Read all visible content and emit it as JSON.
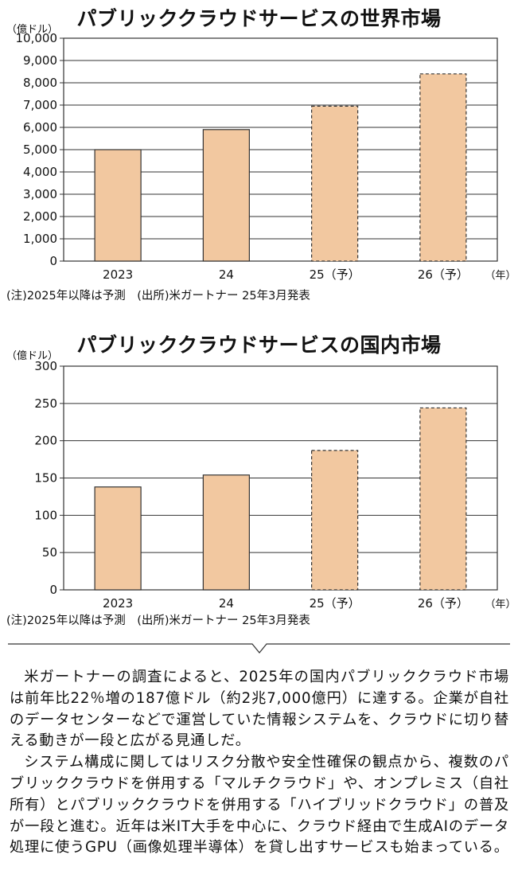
{
  "chart_data": [
    {
      "type": "bar",
      "title": "パブリッククラウドサービスの世界市場",
      "unit_label": "（億ドル）",
      "categories": [
        "2023",
        "24",
        "25（予）",
        "26（予）"
      ],
      "values": [
        5000,
        5900,
        6950,
        8400
      ],
      "forecast": [
        false,
        false,
        true,
        true
      ],
      "x_unit": "（年）",
      "ylim": [
        0,
        10000
      ],
      "yticks": [
        "0",
        "1,000",
        "2,000",
        "3,000",
        "4,000",
        "5,000",
        "6,000",
        "7,000",
        "8,000",
        "9,000",
        "10,000"
      ],
      "ytick_values": [
        0,
        1000,
        2000,
        3000,
        4000,
        5000,
        6000,
        7000,
        8000,
        9000,
        10000
      ],
      "grid": true,
      "note": "(注)2025年以降は予測　(出所)米ガートナー 25年3月発表"
    },
    {
      "type": "bar",
      "title": "パブリッククラウドサービスの国内市場",
      "unit_label": "（億ドル）",
      "categories": [
        "2023",
        "24",
        "25（予）",
        "26（予）"
      ],
      "values": [
        138,
        154,
        187,
        244
      ],
      "forecast": [
        false,
        false,
        true,
        true
      ],
      "x_unit": "（年）",
      "ylim": [
        0,
        300
      ],
      "yticks": [
        "0",
        "50",
        "100",
        "150",
        "200",
        "250",
        "300"
      ],
      "ytick_values": [
        0,
        50,
        100,
        150,
        200,
        250,
        300
      ],
      "grid": true,
      "note": "(注)2025年以降は予測　(出所)米ガートナー 25年3月発表"
    }
  ],
  "colors": {
    "bar": "#f2c8a0",
    "bar_stroke": "#333333",
    "grid": "#333333"
  },
  "article": {
    "p1": "米ガートナーの調査によると、2025年の国内パブリッククラウド市場は前年比22％増の187億ドル（約2兆7,000億円）に達する。企業が自社のデータセンターなどで運営していた情報システムを、クラウドに切り替える動きが一段と広がる見通しだ。",
    "p2": "システム構成に関してはリスク分散や安全性確保の観点から、複数のパブリッククラウドを併用する「マルチクラウド」や、オンプレミス（自社所有）とパブリッククラウドを併用する「ハイブリッドクラウド」の普及が一段と進む。近年は米IT大手を中心に、クラウド経由で生成AIのデータ処理に使うGPU（画像処理半導体）を貸し出すサービスも始まっている。"
  }
}
